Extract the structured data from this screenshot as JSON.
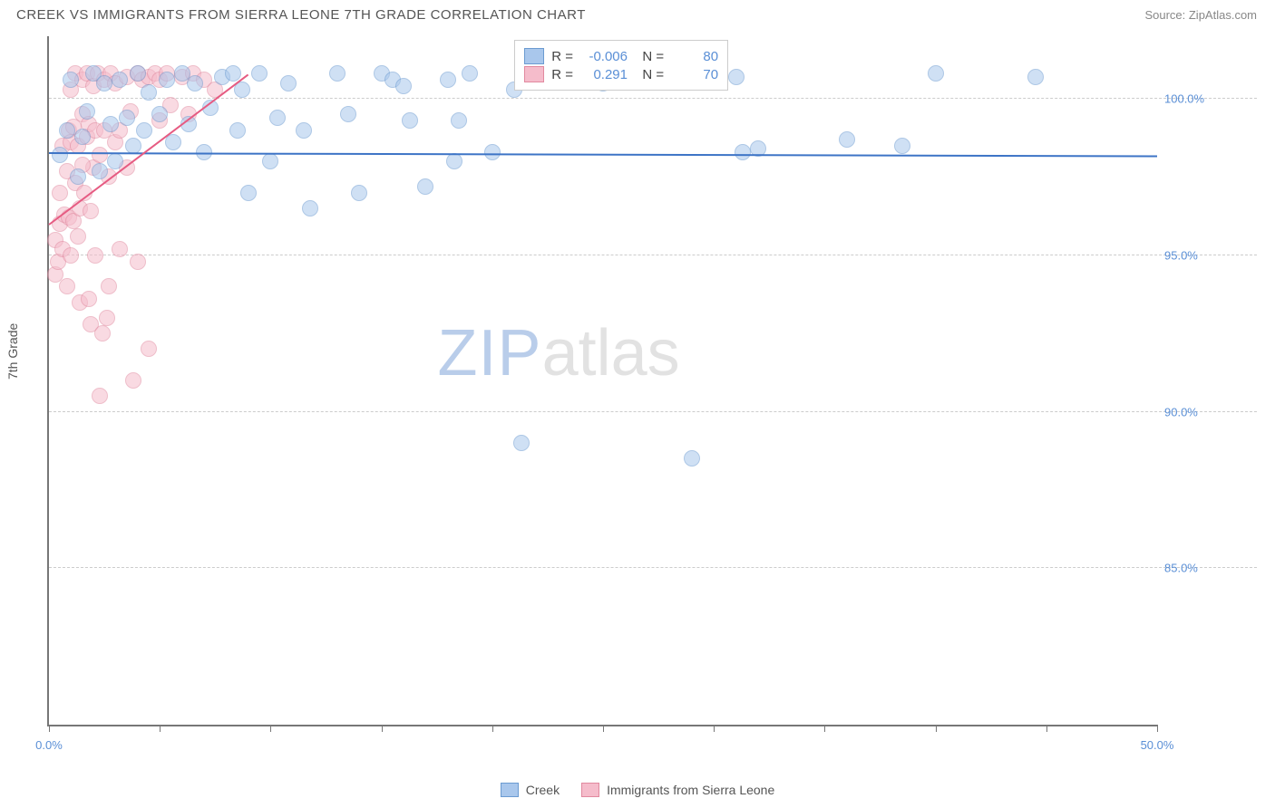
{
  "header": {
    "title": "CREEK VS IMMIGRANTS FROM SIERRA LEONE 7TH GRADE CORRELATION CHART",
    "source": "Source: ZipAtlas.com"
  },
  "chart": {
    "type": "scatter",
    "y_axis_label": "7th Grade",
    "xlim": [
      0,
      50
    ],
    "ylim": [
      80,
      102
    ],
    "x_ticks": [
      0,
      5,
      10,
      15,
      20,
      25,
      30,
      35,
      40,
      45,
      50
    ],
    "x_tick_labels": {
      "0": "0.0%",
      "50": "50.0%"
    },
    "y_gridlines": [
      85,
      90,
      95,
      100
    ],
    "y_grid_labels": {
      "85": "85.0%",
      "90": "90.0%",
      "95": "95.0%",
      "100": "100.0%"
    },
    "grid_color": "#cccccc",
    "background_color": "#ffffff",
    "marker_radius": 9,
    "marker_opacity": 0.55,
    "watermark": {
      "part1": "ZIP",
      "part2": "atlas"
    },
    "series": [
      {
        "id": "creek",
        "label": "Creek",
        "color_fill": "#a9c7ec",
        "color_stroke": "#6b9bd1",
        "r_value": "-0.006",
        "n_value": "80",
        "trend": {
          "x1": 0,
          "y1": 98.3,
          "x2": 50,
          "y2": 98.2,
          "color": "#3d74c6",
          "width": 2
        },
        "points": [
          [
            0.5,
            98.2
          ],
          [
            0.8,
            99.0
          ],
          [
            1.0,
            100.6
          ],
          [
            1.3,
            97.5
          ],
          [
            1.5,
            98.8
          ],
          [
            1.7,
            99.6
          ],
          [
            2.0,
            100.8
          ],
          [
            2.3,
            97.7
          ],
          [
            2.5,
            100.5
          ],
          [
            2.8,
            99.2
          ],
          [
            3.0,
            98.0
          ],
          [
            3.2,
            100.6
          ],
          [
            3.5,
            99.4
          ],
          [
            3.8,
            98.5
          ],
          [
            4.0,
            100.8
          ],
          [
            4.3,
            99.0
          ],
          [
            4.5,
            100.2
          ],
          [
            5.0,
            99.5
          ],
          [
            5.3,
            100.6
          ],
          [
            5.6,
            98.6
          ],
          [
            6.0,
            100.8
          ],
          [
            6.3,
            99.2
          ],
          [
            6.6,
            100.5
          ],
          [
            7.0,
            98.3
          ],
          [
            7.3,
            99.7
          ],
          [
            7.8,
            100.7
          ],
          [
            8.3,
            100.8
          ],
          [
            8.5,
            99.0
          ],
          [
            8.7,
            100.3
          ],
          [
            9.0,
            97.0
          ],
          [
            9.5,
            100.8
          ],
          [
            10.0,
            98.0
          ],
          [
            10.3,
            99.4
          ],
          [
            10.8,
            100.5
          ],
          [
            11.5,
            99.0
          ],
          [
            11.8,
            96.5
          ],
          [
            13.0,
            100.8
          ],
          [
            13.5,
            99.5
          ],
          [
            14.0,
            97.0
          ],
          [
            15.0,
            100.8
          ],
          [
            15.5,
            100.6
          ],
          [
            16.0,
            100.4
          ],
          [
            16.3,
            99.3
          ],
          [
            17.0,
            97.2
          ],
          [
            18.0,
            100.6
          ],
          [
            18.3,
            98.0
          ],
          [
            18.5,
            99.3
          ],
          [
            19.0,
            100.8
          ],
          [
            20.0,
            98.3
          ],
          [
            21.0,
            100.3
          ],
          [
            21.3,
            89.0
          ],
          [
            25.0,
            100.5
          ],
          [
            29.0,
            88.5
          ],
          [
            31.0,
            100.7
          ],
          [
            31.3,
            98.3
          ],
          [
            32.0,
            98.4
          ],
          [
            36.0,
            98.7
          ],
          [
            38.5,
            98.5
          ],
          [
            40.0,
            100.8
          ],
          [
            44.5,
            100.7
          ]
        ]
      },
      {
        "id": "sierra",
        "label": "Immigrants from Sierra Leone",
        "color_fill": "#f5bccb",
        "color_stroke": "#e1899f",
        "r_value": "0.291",
        "n_value": "70",
        "trend": {
          "x1": 0,
          "y1": 96.0,
          "x2": 9,
          "y2": 100.8,
          "color": "#e65b82",
          "width": 2
        },
        "points": [
          [
            0.3,
            94.4
          ],
          [
            0.3,
            95.5
          ],
          [
            0.4,
            94.8
          ],
          [
            0.5,
            96.0
          ],
          [
            0.5,
            97.0
          ],
          [
            0.6,
            95.2
          ],
          [
            0.6,
            98.5
          ],
          [
            0.7,
            96.3
          ],
          [
            0.8,
            94.0
          ],
          [
            0.8,
            97.7
          ],
          [
            0.9,
            96.2
          ],
          [
            0.9,
            99.0
          ],
          [
            1.0,
            95.0
          ],
          [
            1.0,
            98.6
          ],
          [
            1.0,
            100.3
          ],
          [
            1.1,
            96.1
          ],
          [
            1.1,
            99.1
          ],
          [
            1.2,
            97.3
          ],
          [
            1.2,
            100.8
          ],
          [
            1.3,
            95.6
          ],
          [
            1.3,
            98.5
          ],
          [
            1.4,
            96.5
          ],
          [
            1.4,
            93.5
          ],
          [
            1.5,
            99.5
          ],
          [
            1.5,
            100.6
          ],
          [
            1.6,
            97.0
          ],
          [
            1.7,
            98.8
          ],
          [
            1.7,
            100.8
          ],
          [
            1.8,
            99.2
          ],
          [
            1.9,
            96.4
          ],
          [
            1.9,
            92.8
          ],
          [
            2.0,
            100.4
          ],
          [
            2.0,
            97.8
          ],
          [
            2.1,
            99.0
          ],
          [
            2.1,
            95.0
          ],
          [
            2.2,
            100.8
          ],
          [
            2.3,
            98.2
          ],
          [
            2.4,
            92.5
          ],
          [
            2.5,
            100.6
          ],
          [
            2.5,
            99.0
          ],
          [
            2.6,
            93.0
          ],
          [
            2.7,
            97.5
          ],
          [
            2.7,
            94.0
          ],
          [
            2.8,
            100.8
          ],
          [
            3.0,
            98.6
          ],
          [
            3.0,
            100.5
          ],
          [
            3.2,
            99.0
          ],
          [
            3.2,
            95.2
          ],
          [
            3.5,
            100.7
          ],
          [
            3.5,
            97.8
          ],
          [
            3.7,
            99.6
          ],
          [
            3.8,
            91.0
          ],
          [
            4.0,
            100.8
          ],
          [
            4.0,
            94.8
          ],
          [
            4.2,
            100.6
          ],
          [
            4.5,
            100.7
          ],
          [
            4.5,
            92.0
          ],
          [
            4.8,
            100.8
          ],
          [
            5.0,
            99.3
          ],
          [
            5.0,
            100.6
          ],
          [
            5.3,
            100.8
          ],
          [
            5.5,
            99.8
          ],
          [
            6.0,
            100.7
          ],
          [
            6.3,
            99.5
          ],
          [
            6.5,
            100.8
          ],
          [
            7.0,
            100.6
          ],
          [
            7.5,
            100.3
          ],
          [
            2.3,
            90.5
          ],
          [
            1.8,
            93.6
          ],
          [
            1.5,
            97.9
          ]
        ]
      }
    ],
    "legend_bottom": [
      {
        "label": "Creek",
        "fill": "#a9c7ec",
        "stroke": "#6b9bd1"
      },
      {
        "label": "Immigrants from Sierra Leone",
        "fill": "#f5bccb",
        "stroke": "#e1899f"
      }
    ]
  }
}
